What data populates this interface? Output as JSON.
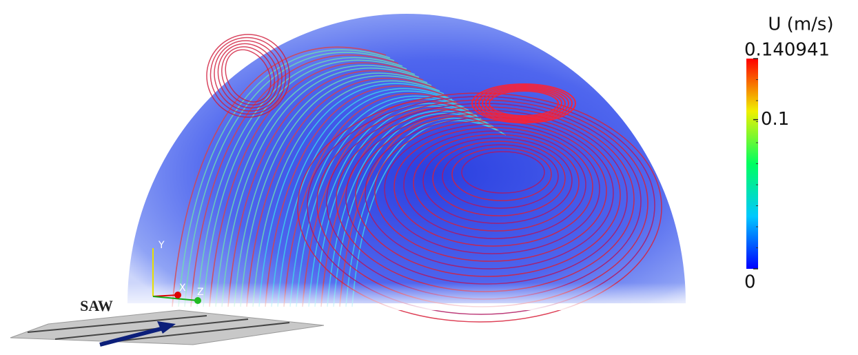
{
  "figure": {
    "label": "SAW",
    "axes": {
      "y": "Y",
      "x": "X",
      "z": "Z"
    },
    "colorbar": {
      "title": "U (m/s)",
      "lim": [
        0,
        0.140941
      ],
      "ticks": [
        0.140941,
        0.1,
        0
      ],
      "colors": [
        "#0000ff",
        "#00c8ff",
        "#00ff60",
        "#f0f000",
        "#ff0000"
      ]
    }
  }
}
